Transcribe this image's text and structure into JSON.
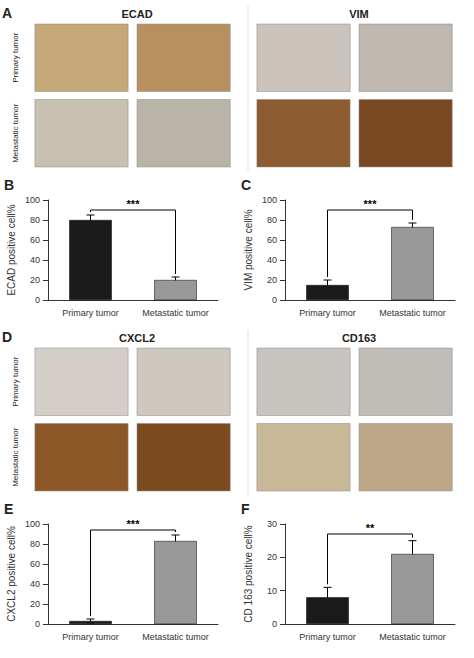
{
  "chart_data": [
    {
      "type": "image",
      "title": "ECAD",
      "categories": [
        "Primary tumor",
        "Metastatic tumor"
      ],
      "colors": [
        "#c4a878",
        "#b89060",
        "#c8c0b0",
        "#b8b4a8"
      ],
      "annotations": [
        {
          "text": "A"
        }
      ]
    },
    {
      "type": "image",
      "title": "VIM",
      "colors": [
        "#ccc4bc",
        "#beb8b0",
        "#8c5c30",
        "#7a4820"
      ]
    },
    {
      "type": "bar",
      "categories": [
        "Primary tumor",
        "Metastatic tumor"
      ],
      "values": [
        80,
        20
      ],
      "errors": [
        5,
        3
      ],
      "colors": [
        "#1a1a1a",
        "#999999"
      ],
      "ylabel": "ECAD positive cell%",
      "ylim": [
        0,
        100
      ],
      "yticks": [
        0,
        20,
        40,
        60,
        80,
        100
      ],
      "grid": false,
      "annotations": [
        {
          "text": "B"
        },
        {
          "text": "***",
          "y": 90
        }
      ]
    },
    {
      "type": "bar",
      "categories": [
        "Primary tumor",
        "Metastatic tumor"
      ],
      "values": [
        15,
        73
      ],
      "errors": [
        5,
        4
      ],
      "colors": [
        "#1a1a1a",
        "#999999"
      ],
      "ylabel": "VIM positive cell%",
      "ylim": [
        0,
        100
      ],
      "yticks": [
        0,
        20,
        40,
        60,
        80,
        100
      ],
      "grid": false,
      "annotations": [
        {
          "text": "C"
        },
        {
          "text": "***",
          "y": 90
        }
      ]
    },
    {
      "type": "image",
      "title": "CXCL2",
      "categories": [
        "Primary tumor",
        "Metastatic tumor"
      ],
      "colors": [
        "#d4cec8",
        "#ccc8c0",
        "#8c5828",
        "#7c4c20"
      ],
      "annotations": [
        {
          "text": "D"
        }
      ]
    },
    {
      "type": "image",
      "title": "CD163",
      "colors": [
        "#c8c4c0",
        "#c0bcb8",
        "#c8b898",
        "#bca888"
      ]
    },
    {
      "type": "bar",
      "categories": [
        "Primary tumor",
        "Metastatic tumor"
      ],
      "values": [
        3,
        83
      ],
      "errors": [
        2,
        6
      ],
      "colors": [
        "#1a1a1a",
        "#999999"
      ],
      "ylabel": "CXCL2 positive cell%",
      "ylim": [
        0,
        100
      ],
      "yticks": [
        0,
        20,
        40,
        60,
        80,
        100
      ],
      "grid": false,
      "annotations": [
        {
          "text": "E"
        },
        {
          "text": "***",
          "y": 94
        }
      ]
    },
    {
      "type": "bar",
      "categories": [
        "Primary tumor",
        "Metastatic tumor"
      ],
      "values": [
        8,
        21
      ],
      "errors": [
        3,
        4
      ],
      "colors": [
        "#1a1a1a",
        "#999999"
      ],
      "ylabel": "CD 163 positive cell%",
      "ylim": [
        0,
        30
      ],
      "yticks": [
        0,
        10,
        20,
        30
      ],
      "grid": false,
      "annotations": [
        {
          "text": "F"
        },
        {
          "text": "**",
          "y": 27
        }
      ]
    }
  ]
}
